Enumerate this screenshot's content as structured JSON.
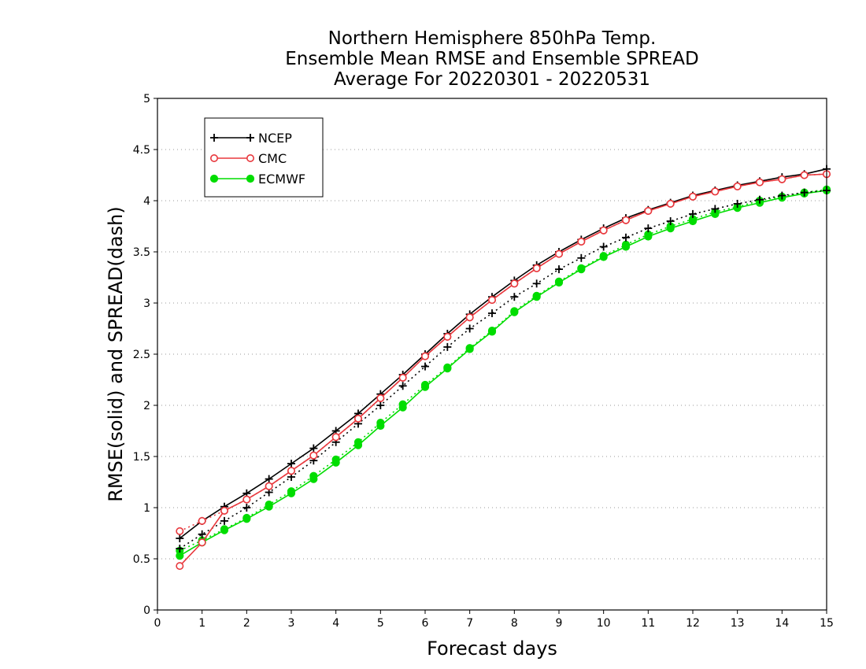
{
  "chart_data": {
    "type": "line",
    "title_lines": [
      "Northern Hemisphere 850hPa Temp.",
      "Ensemble Mean RMSE and Ensemble SPREAD",
      "Average For 20220301 - 20220531"
    ],
    "xlabel": "Forecast days",
    "ylabel": "RMSE(solid) and SPREAD(dash)",
    "xlim": [
      0,
      15
    ],
    "ylim": [
      0,
      5
    ],
    "x_ticks": [
      0,
      1,
      2,
      3,
      4,
      5,
      6,
      7,
      8,
      9,
      10,
      11,
      12,
      13,
      14,
      15
    ],
    "y_ticks": [
      0,
      0.5,
      1,
      1.5,
      2,
      2.5,
      3,
      3.5,
      4,
      4.5,
      5
    ],
    "y_tick_labels": [
      "0",
      "0.5",
      "1",
      "1.5",
      "2",
      "2.5",
      "3",
      "3.5",
      "4",
      "4.5",
      "5"
    ],
    "grid": "horizontal dotted",
    "legend_position": "top-left",
    "x": [
      0.5,
      1,
      1.5,
      2,
      2.5,
      3,
      3.5,
      4,
      4.5,
      5,
      5.5,
      6,
      6.5,
      7,
      7.5,
      8,
      8.5,
      9,
      9.5,
      10,
      10.5,
      11,
      11.5,
      12,
      12.5,
      13,
      13.5,
      14,
      14.5,
      15
    ],
    "series": [
      {
        "name": "NCEP",
        "color": "#000000",
        "marker": "plus",
        "rmse": [
          0.7,
          0.87,
          1.01,
          1.14,
          1.28,
          1.43,
          1.58,
          1.75,
          1.92,
          2.11,
          2.3,
          2.5,
          2.7,
          2.89,
          3.06,
          3.22,
          3.37,
          3.5,
          3.62,
          3.73,
          3.83,
          3.91,
          3.98,
          4.05,
          4.1,
          4.15,
          4.19,
          4.23,
          4.26,
          4.31
        ],
        "spread": [
          0.6,
          0.74,
          0.87,
          1.0,
          1.15,
          1.3,
          1.46,
          1.64,
          1.82,
          2.0,
          2.19,
          2.38,
          2.57,
          2.75,
          2.9,
          3.06,
          3.19,
          3.33,
          3.44,
          3.55,
          3.64,
          3.73,
          3.8,
          3.87,
          3.92,
          3.97,
          4.01,
          4.05,
          4.08,
          4.1
        ]
      },
      {
        "name": "CMC",
        "color": "#e8383d",
        "marker": "open-circle",
        "rmse": [
          0.43,
          0.66,
          0.97,
          1.08,
          1.21,
          1.36,
          1.51,
          1.69,
          1.87,
          2.07,
          2.27,
          2.48,
          2.67,
          2.86,
          3.03,
          3.19,
          3.34,
          3.48,
          3.6,
          3.71,
          3.81,
          3.9,
          3.97,
          4.04,
          4.09,
          4.14,
          4.18,
          4.21,
          4.25,
          4.26
        ],
        "spread": [
          0.77,
          0.87,
          0.97,
          1.08,
          1.21,
          1.36,
          1.51,
          1.69,
          1.87,
          2.07,
          2.27,
          2.48,
          2.67,
          2.86,
          3.03,
          3.19,
          3.34,
          3.48,
          3.6,
          3.71,
          3.81,
          3.9,
          3.97,
          4.04,
          4.09,
          4.14,
          4.18,
          4.21,
          4.25,
          4.26
        ]
      },
      {
        "name": "ECMWF",
        "color": "#00dd00",
        "marker": "filled-circle",
        "rmse": [
          0.53,
          0.66,
          0.78,
          0.89,
          1.01,
          1.14,
          1.28,
          1.44,
          1.61,
          1.8,
          1.98,
          2.18,
          2.36,
          2.55,
          2.72,
          2.91,
          3.06,
          3.2,
          3.33,
          3.45,
          3.55,
          3.65,
          3.73,
          3.8,
          3.87,
          3.93,
          3.98,
          4.03,
          4.07,
          4.1
        ],
        "spread": [
          0.58,
          0.68,
          0.79,
          0.9,
          1.03,
          1.16,
          1.31,
          1.47,
          1.64,
          1.83,
          2.01,
          2.2,
          2.37,
          2.56,
          2.73,
          2.92,
          3.07,
          3.21,
          3.34,
          3.46,
          3.57,
          3.67,
          3.75,
          3.82,
          3.89,
          3.94,
          4.0,
          4.04,
          4.08,
          4.11
        ]
      }
    ]
  }
}
